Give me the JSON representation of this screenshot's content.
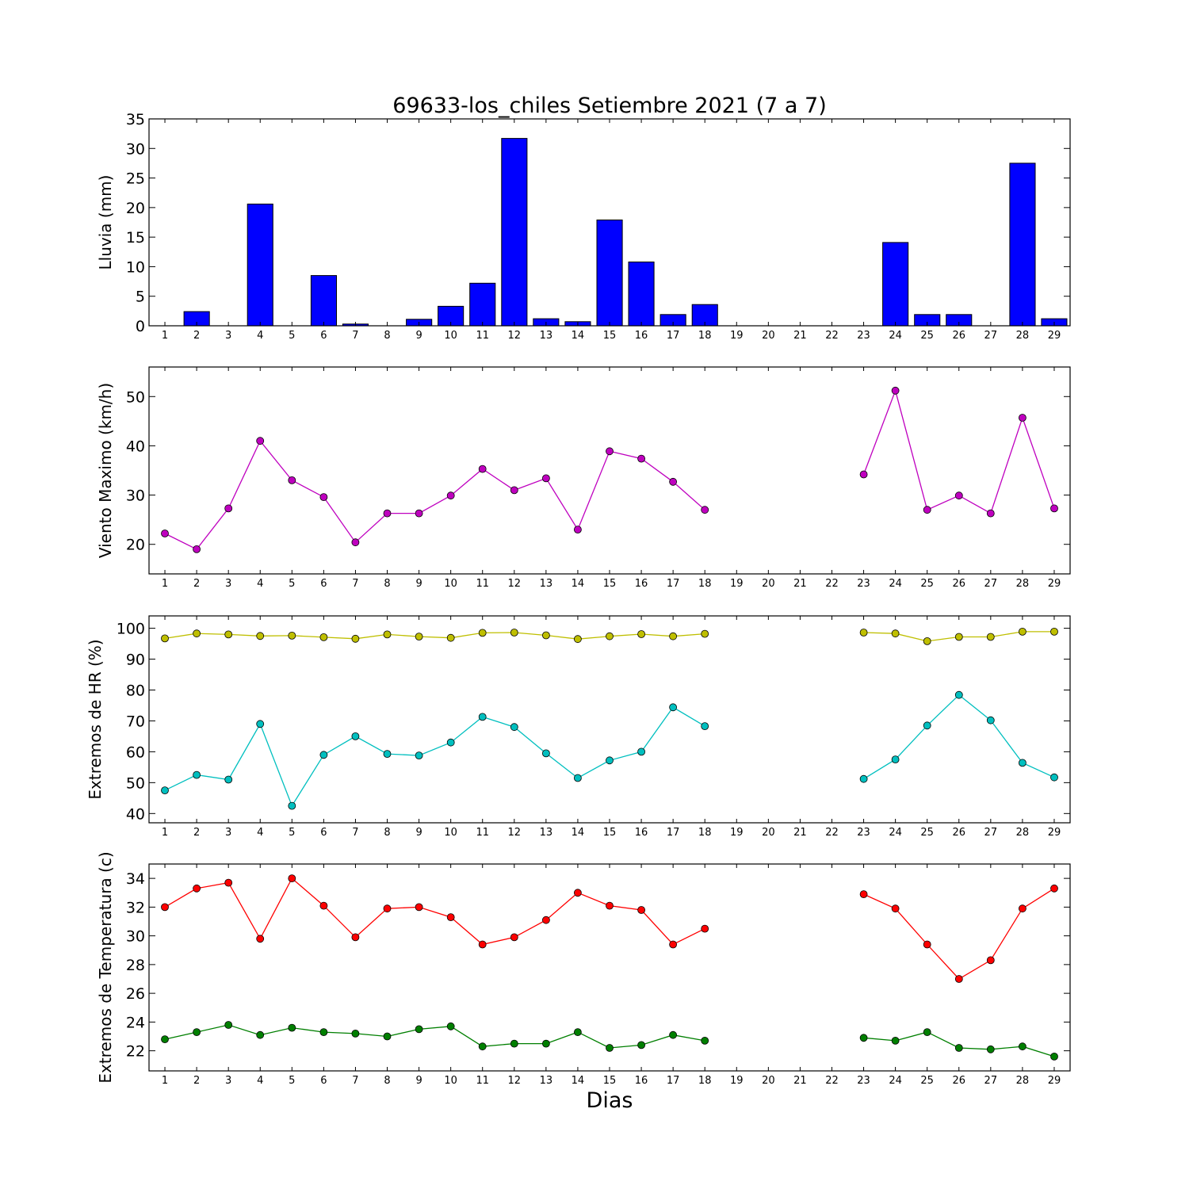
{
  "title": "69633-los_chiles Setiembre 2021  (7 a 7)",
  "xlabel": "Dias",
  "chart_data": [
    {
      "type": "bar",
      "ylabel": "Lluvia (mm)",
      "ylim": [
        0,
        35
      ],
      "yticks": [
        0,
        5,
        10,
        15,
        20,
        25,
        30,
        35
      ],
      "x": [
        1,
        2,
        3,
        4,
        5,
        6,
        7,
        8,
        9,
        10,
        11,
        12,
        13,
        14,
        15,
        16,
        17,
        18,
        19,
        20,
        21,
        22,
        23,
        24,
        25,
        26,
        27,
        28,
        29
      ],
      "series": [
        {
          "color": "#0000ff",
          "values": [
            0,
            2.4,
            0,
            20.6,
            0,
            8.5,
            0.3,
            null,
            1.1,
            3.3,
            7.2,
            31.7,
            1.2,
            0.7,
            17.9,
            10.8,
            1.9,
            3.6,
            null,
            null,
            null,
            null,
            0,
            14.1,
            1.9,
            1.9,
            null,
            27.5,
            1.2
          ]
        }
      ]
    },
    {
      "type": "line",
      "ylabel": "Viento Maximo (km/h)",
      "ylim": [
        14,
        56
      ],
      "yticks": [
        20,
        30,
        40,
        50
      ],
      "x": [
        1,
        2,
        3,
        4,
        5,
        6,
        7,
        8,
        9,
        10,
        11,
        12,
        13,
        14,
        15,
        16,
        17,
        18,
        19,
        20,
        21,
        22,
        23,
        24,
        25,
        26,
        27,
        28,
        29
      ],
      "series": [
        {
          "color": "#bf00bf",
          "values": [
            22.2,
            19.0,
            27.3,
            41.0,
            33.0,
            29.6,
            20.4,
            26.3,
            26.3,
            29.9,
            35.3,
            31.0,
            33.4,
            23.0,
            38.9,
            37.4,
            32.7,
            27.0,
            null,
            null,
            null,
            null,
            34.2,
            51.2,
            27.0,
            29.9,
            26.3,
            45.7,
            27.3
          ]
        }
      ]
    },
    {
      "type": "line",
      "ylabel": "Extremos de HR (%)",
      "ylim": [
        37,
        104
      ],
      "yticks": [
        40,
        50,
        60,
        70,
        80,
        90,
        100
      ],
      "x": [
        1,
        2,
        3,
        4,
        5,
        6,
        7,
        8,
        9,
        10,
        11,
        12,
        13,
        14,
        15,
        16,
        17,
        18,
        19,
        20,
        21,
        22,
        23,
        24,
        25,
        26,
        27,
        28,
        29
      ],
      "series": [
        {
          "color": "#bfbf00",
          "values": [
            96.7,
            98.3,
            98.0,
            97.5,
            97.6,
            97.1,
            96.6,
            98.0,
            97.3,
            96.9,
            98.5,
            98.6,
            97.7,
            96.5,
            97.4,
            98.1,
            97.4,
            98.2,
            null,
            null,
            null,
            null,
            98.6,
            98.3,
            95.8,
            97.2,
            97.2,
            98.9,
            98.9
          ]
        },
        {
          "color": "#00bfbf",
          "values": [
            47.5,
            52.5,
            51.0,
            69.0,
            42.5,
            59.0,
            65.0,
            59.3,
            58.8,
            63.0,
            71.3,
            68.0,
            59.5,
            51.5,
            57.2,
            60.0,
            74.4,
            68.3,
            null,
            null,
            null,
            null,
            51.2,
            57.5,
            68.5,
            78.4,
            70.2,
            56.4,
            51.7
          ]
        }
      ]
    },
    {
      "type": "line",
      "ylabel": "Extremos de Temperatura (c)",
      "ylim": [
        20.6,
        35
      ],
      "yticks": [
        22,
        24,
        26,
        28,
        30,
        32,
        34
      ],
      "x": [
        1,
        2,
        3,
        4,
        5,
        6,
        7,
        8,
        9,
        10,
        11,
        12,
        13,
        14,
        15,
        16,
        17,
        18,
        19,
        20,
        21,
        22,
        23,
        24,
        25,
        26,
        27,
        28,
        29
      ],
      "series": [
        {
          "color": "#ff0000",
          "values": [
            32.0,
            33.3,
            33.7,
            29.8,
            34.0,
            32.1,
            29.9,
            31.9,
            32.0,
            31.3,
            29.4,
            29.9,
            31.1,
            33.0,
            32.1,
            31.8,
            29.4,
            30.5,
            null,
            null,
            null,
            null,
            32.9,
            31.9,
            29.4,
            27.0,
            28.3,
            31.9,
            33.3
          ]
        },
        {
          "color": "#007f00",
          "values": [
            22.8,
            23.3,
            23.8,
            23.1,
            23.6,
            23.3,
            23.2,
            23.0,
            23.5,
            23.7,
            22.3,
            22.5,
            22.5,
            23.3,
            22.2,
            22.4,
            23.1,
            22.7,
            null,
            null,
            null,
            null,
            22.9,
            22.7,
            23.3,
            22.2,
            22.1,
            22.3,
            21.6
          ]
        }
      ]
    }
  ]
}
